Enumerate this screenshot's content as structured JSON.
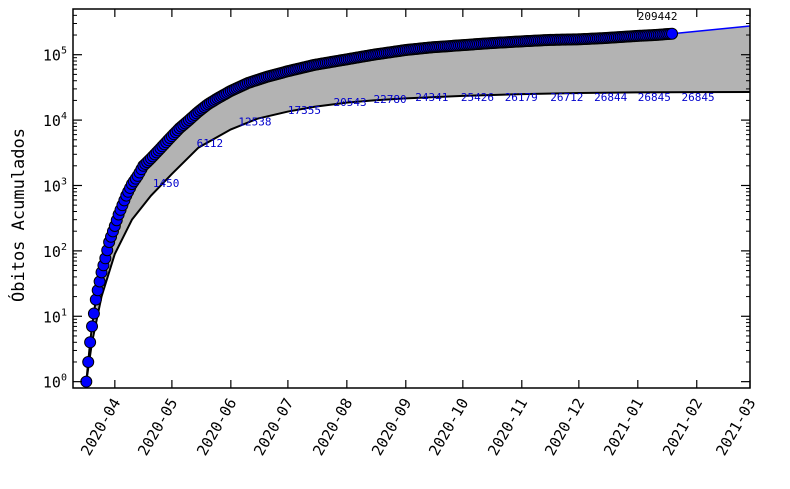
{
  "chart_data": {
    "type": "line",
    "ylabel": "Óbitos Acumulados",
    "yscale": "log",
    "ylim": [
      0.8,
      500000
    ],
    "xlim": [
      "2020-03-10",
      "2021-03-01"
    ],
    "grid": false,
    "colors": {
      "observed": "#0000ff",
      "observed_edge": "#000000",
      "band_fill": "#b3b3b3",
      "band_line": "#000000",
      "projection": "#0000ff",
      "lower_labels": "#0000cc",
      "last_label": "#000000"
    },
    "x_ticks": [
      {
        "date": "2020-04-01",
        "label": "2020-04"
      },
      {
        "date": "2020-05-01",
        "label": "2020-05"
      },
      {
        "date": "2020-06-01",
        "label": "2020-06"
      },
      {
        "date": "2020-07-01",
        "label": "2020-07"
      },
      {
        "date": "2020-08-01",
        "label": "2020-08"
      },
      {
        "date": "2020-09-01",
        "label": "2020-09"
      },
      {
        "date": "2020-10-01",
        "label": "2020-10"
      },
      {
        "date": "2020-11-01",
        "label": "2020-11"
      },
      {
        "date": "2020-12-01",
        "label": "2020-12"
      },
      {
        "date": "2021-01-01",
        "label": "2021-01"
      },
      {
        "date": "2021-02-01",
        "label": "2021-02"
      },
      {
        "date": "2021-03-01",
        "label": "2021-03"
      }
    ],
    "y_ticks": [
      {
        "value": 1,
        "base": "10",
        "exp": "0"
      },
      {
        "value": 10,
        "base": "10",
        "exp": "1"
      },
      {
        "value": 100,
        "base": "10",
        "exp": "2"
      },
      {
        "value": 1000,
        "base": "10",
        "exp": "3"
      },
      {
        "value": 10000,
        "base": "10",
        "exp": "4"
      },
      {
        "value": 100000,
        "base": "10",
        "exp": "5"
      }
    ],
    "series": [
      {
        "role": "observed",
        "x": [
          "2020-03-17",
          "2020-03-19",
          "2020-03-20",
          "2020-03-21",
          "2020-03-22",
          "2020-03-23",
          "2020-03-24",
          "2020-03-25",
          "2020-03-27",
          "2020-03-29",
          "2020-04-01",
          "2020-04-03",
          "2020-04-05",
          "2020-04-07",
          "2020-04-10",
          "2020-04-13",
          "2020-04-16",
          "2020-04-20",
          "2020-04-25",
          "2020-04-30",
          "2020-05-05",
          "2020-05-10",
          "2020-05-15",
          "2020-05-20",
          "2020-05-25",
          "2020-06-01",
          "2020-06-10",
          "2020-06-20",
          "2020-07-01",
          "2020-07-15",
          "2020-08-01",
          "2020-08-15",
          "2020-09-01",
          "2020-09-15",
          "2020-10-01",
          "2020-10-15",
          "2020-11-01",
          "2020-11-15",
          "2020-12-01",
          "2020-12-15",
          "2021-01-01",
          "2021-01-10",
          "2021-01-19"
        ],
        "y": [
          1,
          4,
          7,
          11,
          18,
          25,
          34,
          47,
          77,
          136,
          240,
          360,
          500,
          700,
          1050,
          1400,
          2000,
          2600,
          3700,
          5300,
          7500,
          10000,
          13500,
          17500,
          21500,
          28000,
          37000,
          46000,
          56000,
          70000,
          85000,
          100000,
          118000,
          130000,
          140000,
          150000,
          160000,
          168000,
          172000,
          180000,
          194000,
          200000,
          209442
        ]
      },
      {
        "role": "lower",
        "x": [
          "2020-03-17",
          "2020-03-20",
          "2020-03-25",
          "2020-04-01",
          "2020-04-10",
          "2020-04-20",
          "2020-05-01",
          "2020-05-15",
          "2020-06-01",
          "2020-06-15",
          "2020-07-01",
          "2020-07-15",
          "2020-08-01",
          "2020-08-15",
          "2020-09-01",
          "2020-10-01",
          "2020-11-01",
          "2020-12-01",
          "2021-01-01",
          "2021-02-01",
          "2021-03-01"
        ],
        "y": [
          1,
          4,
          20,
          90,
          300,
          700,
          1500,
          3800,
          7200,
          10500,
          13500,
          16000,
          18500,
          20000,
          21500,
          23500,
          25000,
          26000,
          26600,
          26800,
          26845
        ]
      },
      {
        "role": "upper",
        "x": [
          "2021-01-19",
          "2021-03-01"
        ],
        "y": [
          209442,
          275000
        ]
      }
    ],
    "annotations": [
      {
        "x": "2020-04-21",
        "y": 950,
        "text": "1450",
        "kind": "lower"
      },
      {
        "x": "2020-05-14",
        "y": 3900,
        "text": "6112",
        "kind": "lower"
      },
      {
        "x": "2020-06-05",
        "y": 8300,
        "text": "12538",
        "kind": "lower"
      },
      {
        "x": "2020-07-01",
        "y": 12500,
        "text": "17355",
        "kind": "lower"
      },
      {
        "x": "2020-07-25",
        "y": 16300,
        "text": "20543",
        "kind": "lower"
      },
      {
        "x": "2020-08-15",
        "y": 18200,
        "text": "22780",
        "kind": "lower"
      },
      {
        "x": "2020-09-06",
        "y": 19500,
        "text": "24341",
        "kind": "lower"
      },
      {
        "x": "2020-09-30",
        "y": 19500,
        "text": "25426",
        "kind": "lower"
      },
      {
        "x": "2020-10-23",
        "y": 19500,
        "text": "26179",
        "kind": "lower"
      },
      {
        "x": "2020-11-16",
        "y": 19500,
        "text": "26712",
        "kind": "lower"
      },
      {
        "x": "2020-12-09",
        "y": 19500,
        "text": "26844",
        "kind": "lower"
      },
      {
        "x": "2021-01-01",
        "y": 19500,
        "text": "26845",
        "kind": "lower"
      },
      {
        "x": "2021-01-24",
        "y": 19500,
        "text": "26845",
        "kind": "lower"
      },
      {
        "x": "2021-01-01",
        "y": 340000,
        "text": "209442",
        "kind": "last"
      }
    ]
  }
}
